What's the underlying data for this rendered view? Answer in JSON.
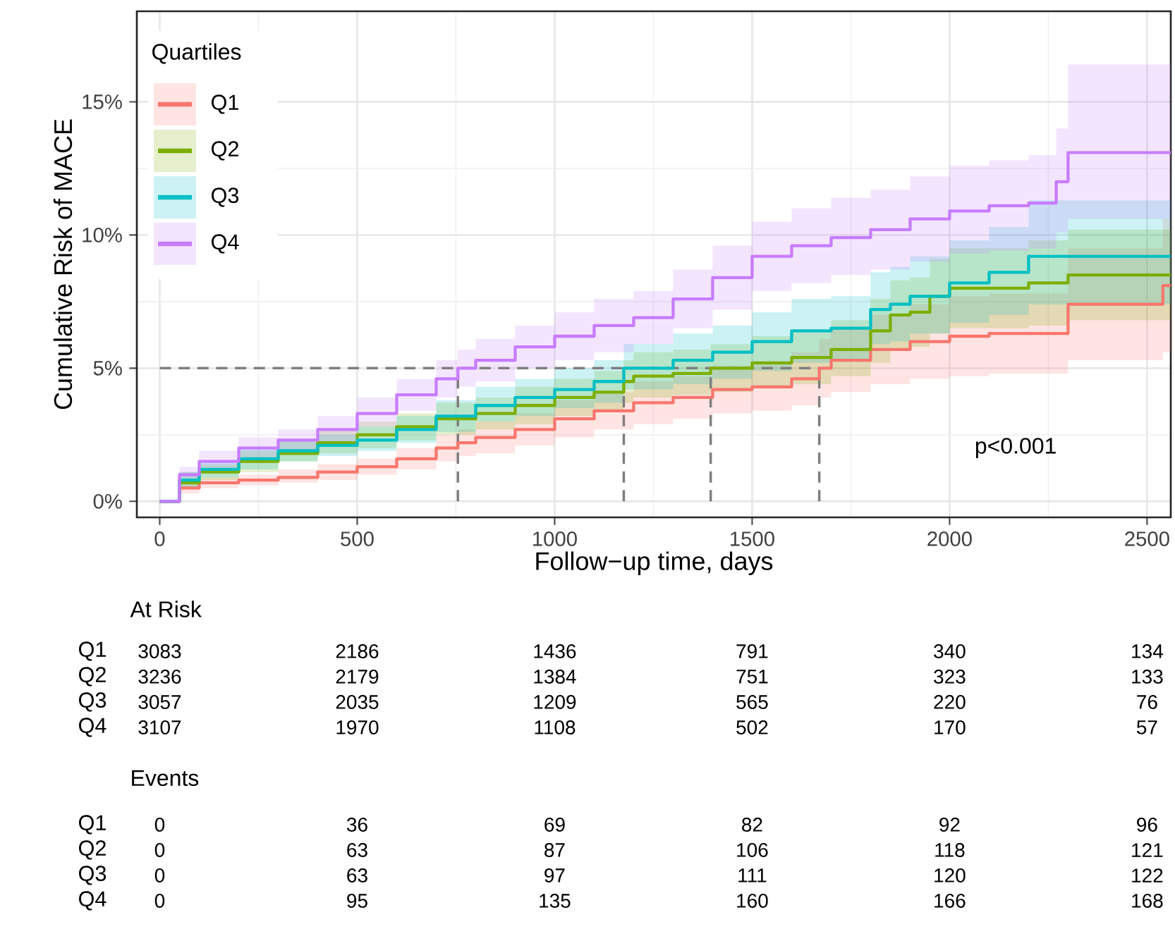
{
  "chart_data": {
    "type": "step",
    "xlabel": "Follow−up time, days",
    "ylabel": "Cumulative Risk of MACE",
    "legend_title": "Quartiles",
    "legend": "top left",
    "grid": true,
    "xlim": [
      -58,
      2560
    ],
    "ylim": [
      -0.6,
      18.4
    ],
    "xticks": [
      0,
      500,
      1000,
      1500,
      2000,
      2500
    ],
    "yticks": [
      {
        "value": 0,
        "label": "0%"
      },
      {
        "value": 5,
        "label": "5%"
      },
      {
        "value": 10,
        "label": "10%"
      },
      {
        "value": 15,
        "label": "15%"
      }
    ],
    "series": [
      {
        "name": "Q1",
        "color": "#f8766d",
        "x": [
          0,
          50,
          100,
          200,
          300,
          400,
          500,
          600,
          700,
          755,
          800,
          900,
          1000,
          1100,
          1200,
          1300,
          1400,
          1500,
          1600,
          1670,
          1700,
          1800,
          1900,
          2000,
          2100,
          2290,
          2300,
          2530,
          2540,
          2560
        ],
        "values": [
          0,
          0.5,
          0.7,
          0.8,
          0.9,
          1.1,
          1.3,
          1.6,
          2.0,
          2.2,
          2.4,
          2.7,
          3.1,
          3.4,
          3.7,
          3.9,
          4.2,
          4.3,
          4.6,
          5.0,
          5.3,
          5.7,
          6.0,
          6.2,
          6.3,
          6.3,
          7.4,
          7.4,
          8.1,
          8.1
        ],
        "lower": [
          0,
          0.3,
          0.5,
          0.6,
          0.7,
          0.8,
          1.0,
          1.2,
          1.5,
          1.7,
          1.8,
          2.1,
          2.4,
          2.7,
          2.9,
          3.1,
          3.3,
          3.4,
          3.6,
          3.9,
          4.1,
          4.4,
          4.6,
          4.7,
          4.8,
          4.8,
          5.3,
          5.3,
          5.6,
          5.6
        ],
        "upper": [
          0,
          0.7,
          0.9,
          1.0,
          1.2,
          1.4,
          1.6,
          2.0,
          2.5,
          2.7,
          3.0,
          3.3,
          3.8,
          4.1,
          4.5,
          4.7,
          5.1,
          5.2,
          5.6,
          6.1,
          6.5,
          7.0,
          7.4,
          7.7,
          7.8,
          7.8,
          9.5,
          9.5,
          10.6,
          10.6
        ]
      },
      {
        "name": "Q2",
        "color": "#7cae00",
        "x": [
          0,
          50,
          100,
          200,
          300,
          400,
          500,
          600,
          700,
          800,
          900,
          1000,
          1100,
          1175,
          1200,
          1300,
          1395,
          1500,
          1600,
          1700,
          1800,
          1850,
          1900,
          1950,
          2000,
          2200,
          2300,
          2560
        ],
        "values": [
          0,
          0.7,
          1.1,
          1.5,
          1.8,
          2.2,
          2.5,
          2.8,
          3.1,
          3.3,
          3.6,
          3.9,
          4.1,
          4.5,
          4.7,
          4.8,
          5.0,
          5.2,
          5.4,
          5.7,
          6.4,
          7.0,
          7.1,
          7.7,
          8.0,
          8.2,
          8.5,
          8.5
        ],
        "lower": [
          0,
          0.5,
          0.8,
          1.1,
          1.5,
          1.8,
          2.0,
          2.3,
          2.5,
          2.7,
          2.9,
          3.2,
          3.4,
          3.7,
          3.9,
          4.0,
          4.1,
          4.3,
          4.4,
          4.7,
          5.2,
          5.7,
          5.8,
          6.3,
          6.5,
          6.6,
          6.8,
          6.8
        ],
        "upper": [
          0,
          1.1,
          1.4,
          1.9,
          2.3,
          2.7,
          3.0,
          3.3,
          3.7,
          3.9,
          4.3,
          4.6,
          4.9,
          5.3,
          5.6,
          5.7,
          5.9,
          6.2,
          6.4,
          6.8,
          7.6,
          8.3,
          8.4,
          9.1,
          9.5,
          9.8,
          10.2,
          10.2
        ]
      },
      {
        "name": "Q3",
        "color": "#00bfc4",
        "x": [
          0,
          50,
          100,
          200,
          300,
          400,
          500,
          600,
          700,
          800,
          900,
          1000,
          1100,
          1175,
          1300,
          1400,
          1500,
          1600,
          1700,
          1800,
          1850,
          1900,
          2000,
          2100,
          2200,
          2560
        ],
        "values": [
          0,
          0.8,
          1.2,
          1.6,
          1.9,
          2.1,
          2.3,
          2.7,
          3.2,
          3.6,
          3.9,
          4.2,
          4.5,
          5.0,
          5.3,
          5.6,
          6.0,
          6.4,
          6.5,
          7.2,
          7.4,
          7.7,
          8.2,
          8.6,
          9.2,
          9.2
        ],
        "lower": [
          0,
          0.5,
          0.9,
          1.2,
          1.5,
          1.7,
          1.9,
          2.2,
          2.6,
          3.0,
          3.2,
          3.5,
          3.7,
          4.2,
          4.4,
          4.6,
          4.9,
          5.2,
          5.3,
          5.9,
          6.0,
          6.3,
          6.7,
          7.0,
          7.4,
          7.4
        ],
        "upper": [
          0,
          1.1,
          1.5,
          2.0,
          2.3,
          2.5,
          2.8,
          3.2,
          3.8,
          4.3,
          4.6,
          5.0,
          5.3,
          5.9,
          6.3,
          6.6,
          7.1,
          7.6,
          7.7,
          8.6,
          8.8,
          9.2,
          9.8,
          10.3,
          11.3,
          11.3
        ]
      },
      {
        "name": "Q4",
        "color": "#c77cff",
        "x": [
          0,
          50,
          100,
          200,
          300,
          400,
          500,
          600,
          700,
          755,
          800,
          900,
          1000,
          1100,
          1200,
          1300,
          1400,
          1500,
          1600,
          1700,
          1800,
          1900,
          2000,
          2100,
          2200,
          2270,
          2300,
          2560
        ],
        "values": [
          0,
          1.0,
          1.5,
          2.0,
          2.3,
          2.7,
          3.3,
          4.0,
          4.6,
          5.0,
          5.3,
          5.8,
          6.2,
          6.6,
          6.9,
          7.6,
          8.4,
          9.2,
          9.6,
          9.9,
          10.2,
          10.6,
          10.9,
          11.1,
          11.2,
          12.0,
          13.1,
          13.1
        ],
        "lower": [
          0,
          0.7,
          1.2,
          1.6,
          1.9,
          2.2,
          2.8,
          3.4,
          3.9,
          4.3,
          4.5,
          5.0,
          5.3,
          5.6,
          5.9,
          6.5,
          7.2,
          7.9,
          8.2,
          8.5,
          8.7,
          9.0,
          9.3,
          9.4,
          9.5,
          10.1,
          10.6,
          10.6
        ],
        "upper": [
          0,
          1.3,
          1.9,
          2.4,
          2.7,
          3.2,
          3.9,
          4.6,
          5.3,
          5.7,
          6.1,
          6.6,
          7.1,
          7.6,
          7.9,
          8.7,
          9.6,
          10.5,
          11.0,
          11.4,
          11.7,
          12.2,
          12.6,
          12.8,
          13.0,
          14.0,
          16.4,
          16.4
        ]
      }
    ],
    "ref_lines": [
      {
        "axis": "y",
        "value": 5,
        "color": "#7f7f7f",
        "line_style": "dashed"
      },
      {
        "axis": "x",
        "value": 755,
        "color": "#7f7f7f",
        "line_style": "dashed"
      },
      {
        "axis": "x",
        "value": 1175,
        "color": "#7f7f7f",
        "line_style": "dashed"
      },
      {
        "axis": "x",
        "value": 1395,
        "color": "#7f7f7f",
        "line_style": "dashed"
      },
      {
        "axis": "x",
        "value": 1670,
        "color": "#7f7f7f",
        "line_style": "dashed"
      }
    ],
    "annotations": [
      "p<0.001",
      "At Risk",
      "Q1",
      "3083",
      "2186",
      "1436",
      "791",
      "340",
      "134",
      "Q2",
      "3236",
      "2179",
      "1384",
      "751",
      "323",
      "133",
      "Q3",
      "3057",
      "2035",
      "1209",
      "565",
      "220",
      "76",
      "Q4",
      "3107",
      "1970",
      "1108",
      "502",
      "170",
      "57",
      "Events",
      "Q1",
      "0",
      "36",
      "69",
      "82",
      "92",
      "96",
      "Q2",
      "0",
      "63",
      "87",
      "106",
      "118",
      "121",
      "Q3",
      "0",
      "63",
      "97",
      "111",
      "120",
      "122",
      "Q4",
      "0",
      "95",
      "135",
      "160",
      "166",
      "168"
    ]
  }
}
